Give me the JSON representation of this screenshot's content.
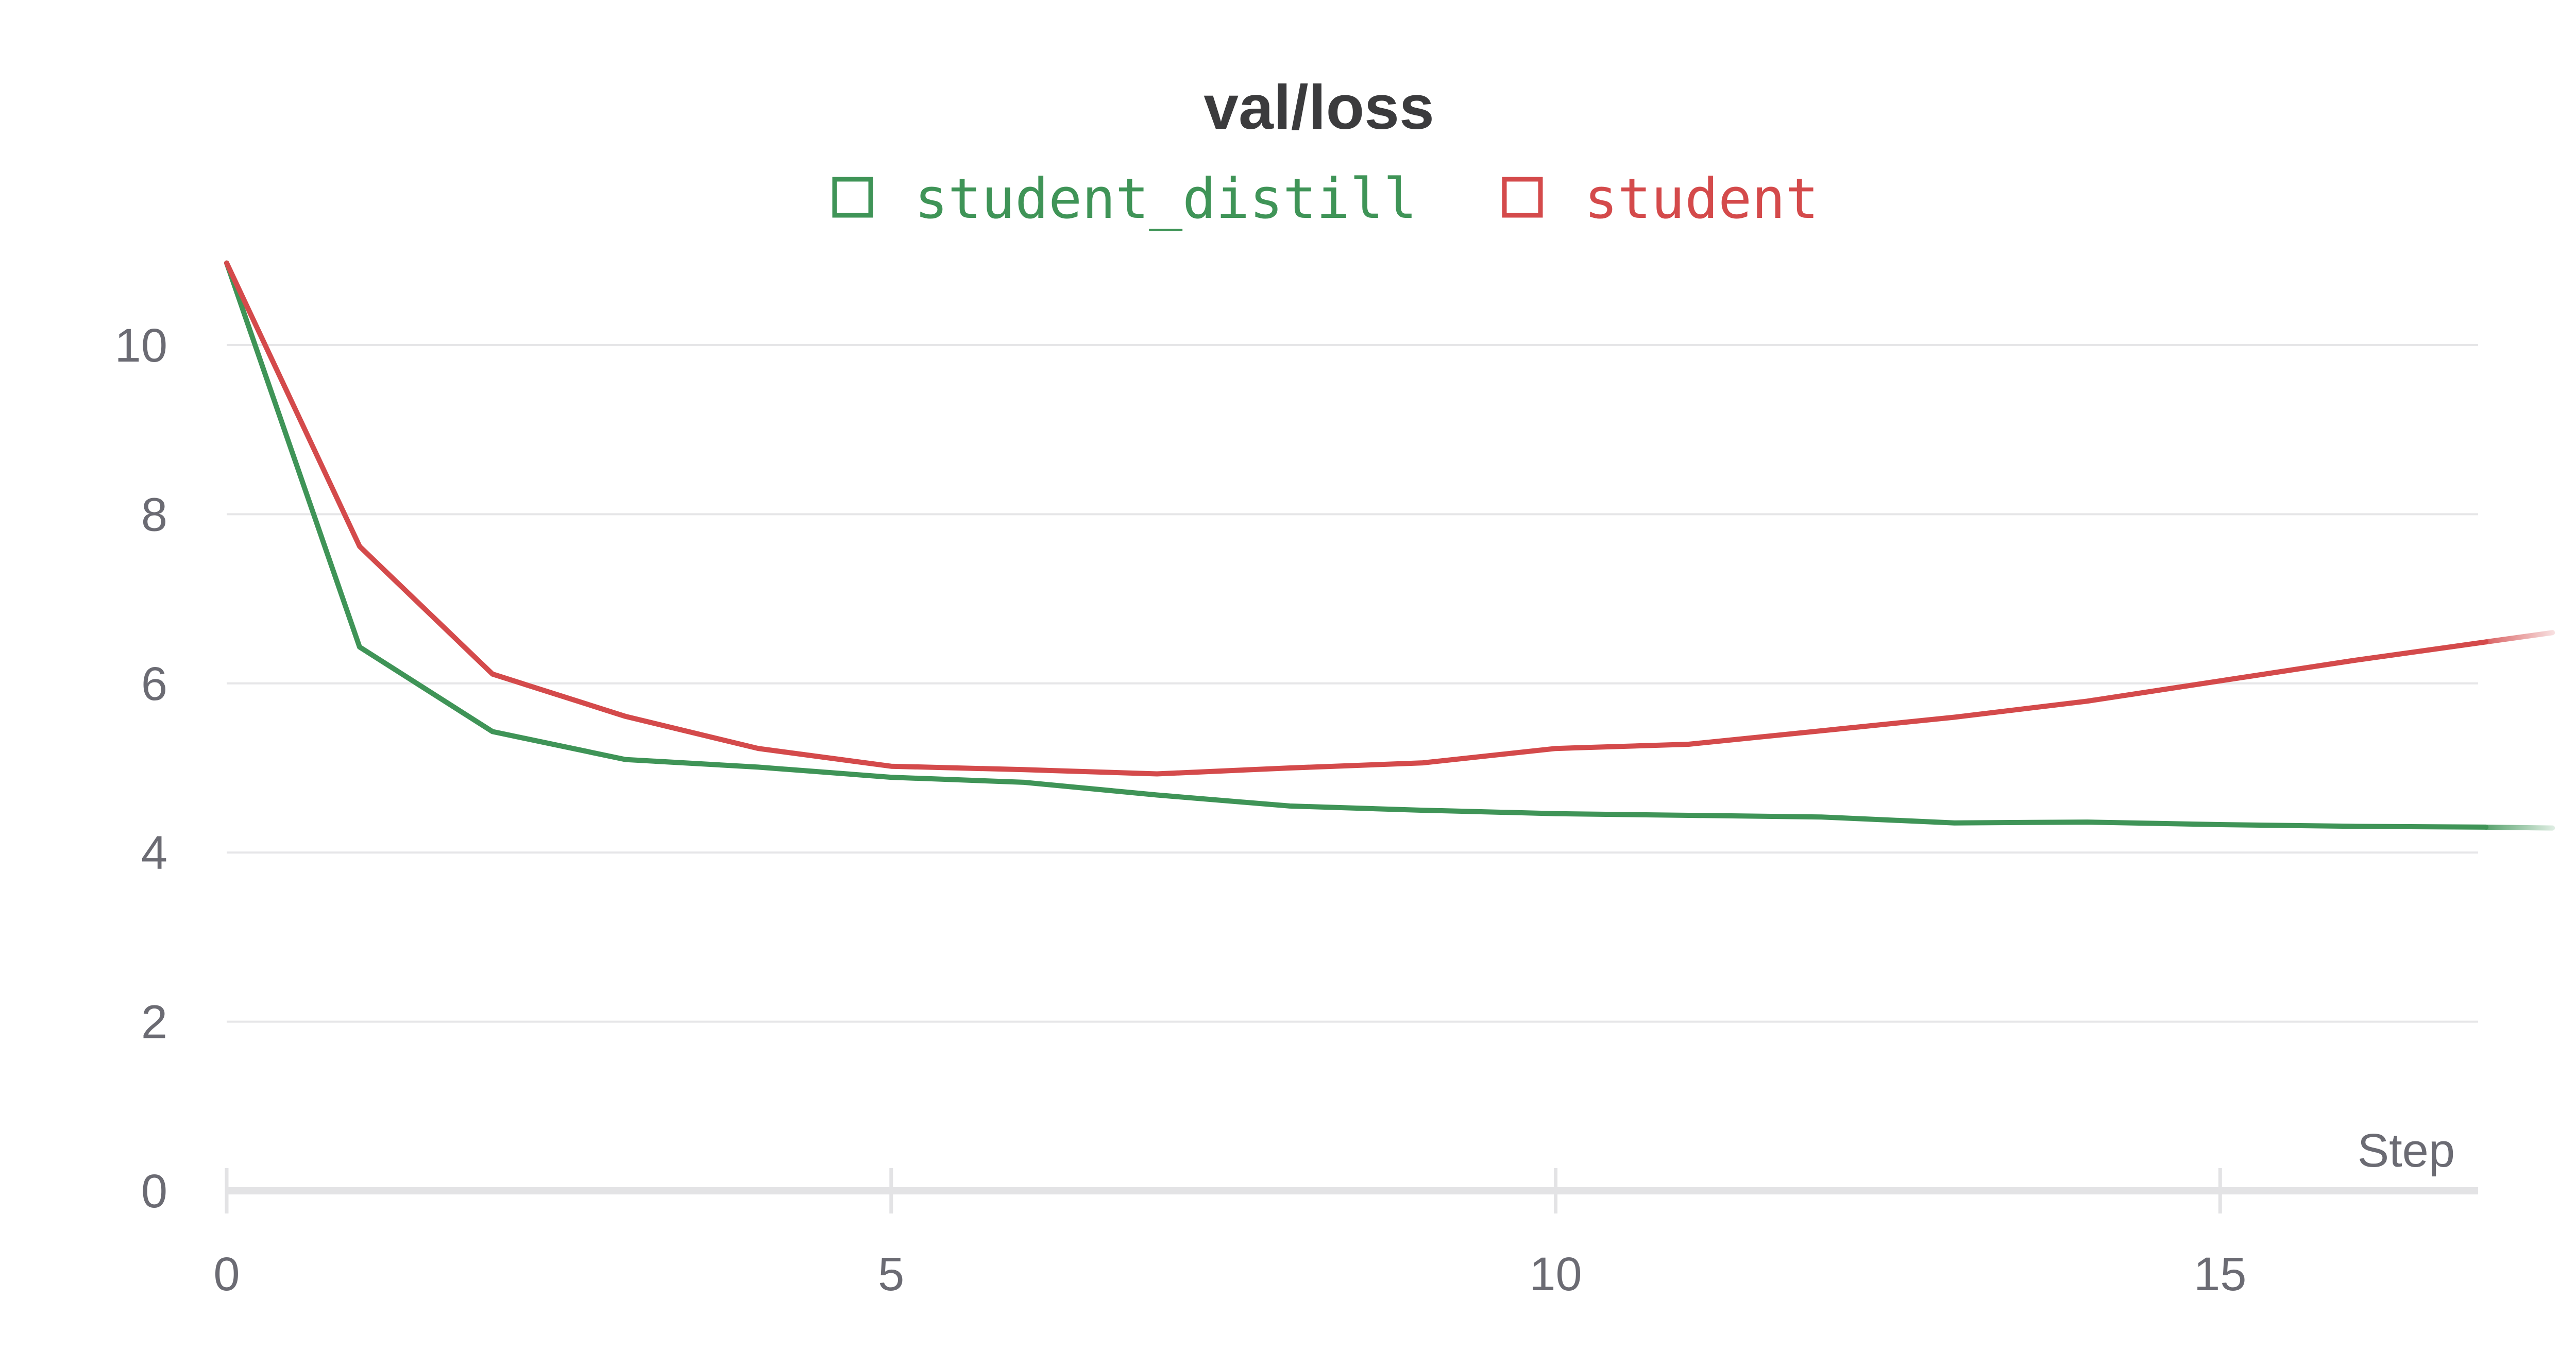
{
  "chart_data": {
    "type": "line",
    "title": "val/loss",
    "xlabel": "Step",
    "ylabel": "",
    "xlim": [
      0,
      17.6
    ],
    "ylim": [
      0,
      11
    ],
    "x_ticks": [
      0,
      5,
      10,
      15
    ],
    "y_ticks": [
      0,
      2,
      4,
      6,
      8,
      10
    ],
    "x_tick_labels": [
      "0",
      "5",
      "10",
      "15"
    ],
    "y_tick_labels": [
      "0",
      "2",
      "4",
      "6",
      "8",
      "10"
    ],
    "grid": true,
    "legend_position": "top-center",
    "series": [
      {
        "name": "student_distill",
        "color": "#3f9457",
        "x": [
          0,
          1,
          2,
          3,
          4,
          5,
          6,
          7,
          8,
          9,
          10,
          11,
          12,
          13,
          14,
          15,
          16,
          17,
          17.5
        ],
        "y": [
          10.97,
          6.43,
          5.43,
          5.1,
          5.01,
          4.89,
          4.83,
          4.68,
          4.55,
          4.5,
          4.46,
          4.44,
          4.42,
          4.35,
          4.36,
          4.33,
          4.31,
          4.3,
          4.29
        ]
      },
      {
        "name": "student",
        "color": "#d44a4b",
        "x": [
          0,
          1,
          2,
          3,
          4,
          5,
          6,
          7,
          8,
          9,
          10,
          11,
          12,
          13,
          14,
          15,
          16,
          17,
          17.5
        ],
        "y": [
          10.97,
          7.62,
          6.11,
          5.61,
          5.23,
          5.02,
          4.98,
          4.93,
          5.0,
          5.06,
          5.23,
          5.28,
          5.44,
          5.6,
          5.79,
          6.03,
          6.27,
          6.49,
          6.6
        ]
      }
    ]
  }
}
